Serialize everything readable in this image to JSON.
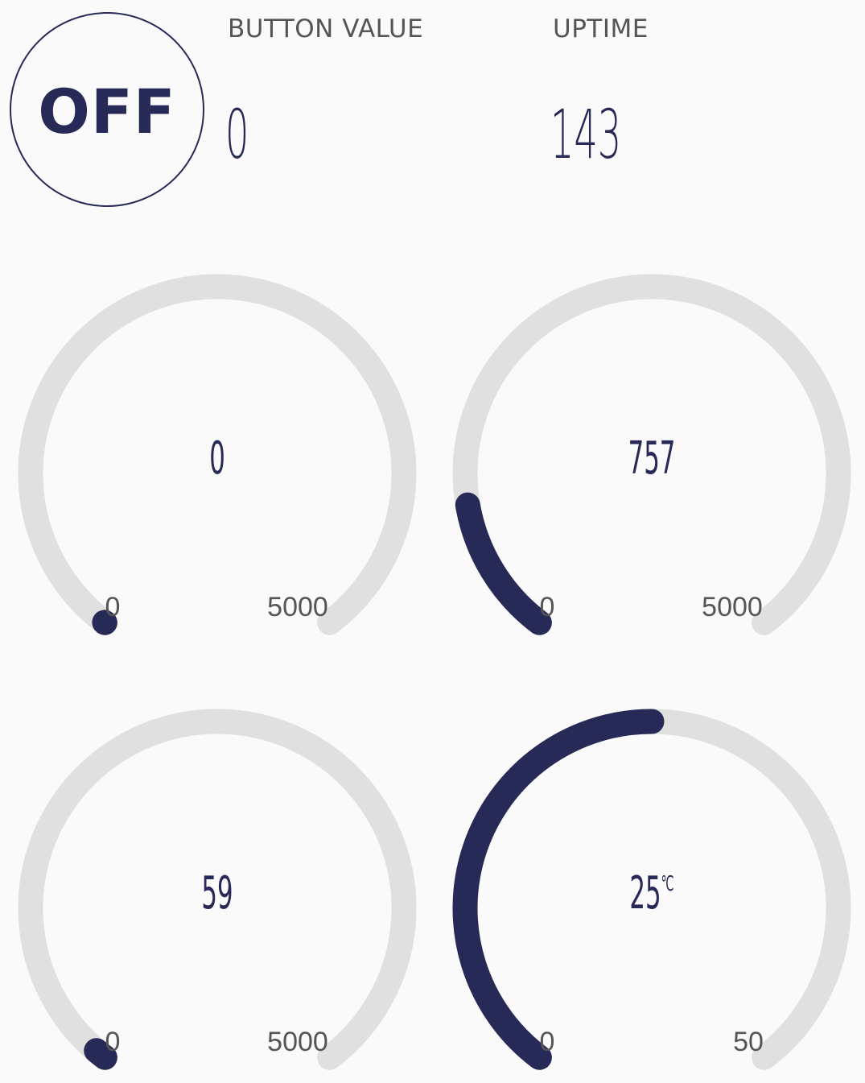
{
  "toggle": {
    "label": "OFF"
  },
  "button_value": {
    "label": "BUTTON VALUE",
    "value": "0"
  },
  "uptime": {
    "label": "UPTIME",
    "value": "143"
  },
  "colors": {
    "accent": "#272956",
    "track": "#e0e0e0",
    "background": "#fafafa",
    "muted_text": "#555555"
  },
  "gauges": [
    {
      "value": 0,
      "display": "0",
      "unit": "",
      "min": 0,
      "max": 5000,
      "min_label": "0",
      "max_label": "5000"
    },
    {
      "value": 757,
      "display": "757",
      "unit": "",
      "min": 0,
      "max": 5000,
      "min_label": "0",
      "max_label": "5000"
    },
    {
      "value": 59,
      "display": "59",
      "unit": "",
      "min": 0,
      "max": 5000,
      "min_label": "0",
      "max_label": "5000"
    },
    {
      "value": 25,
      "display": "25",
      "unit": "℃",
      "min": 0,
      "max": 50,
      "min_label": "0",
      "max_label": "50"
    }
  ]
}
